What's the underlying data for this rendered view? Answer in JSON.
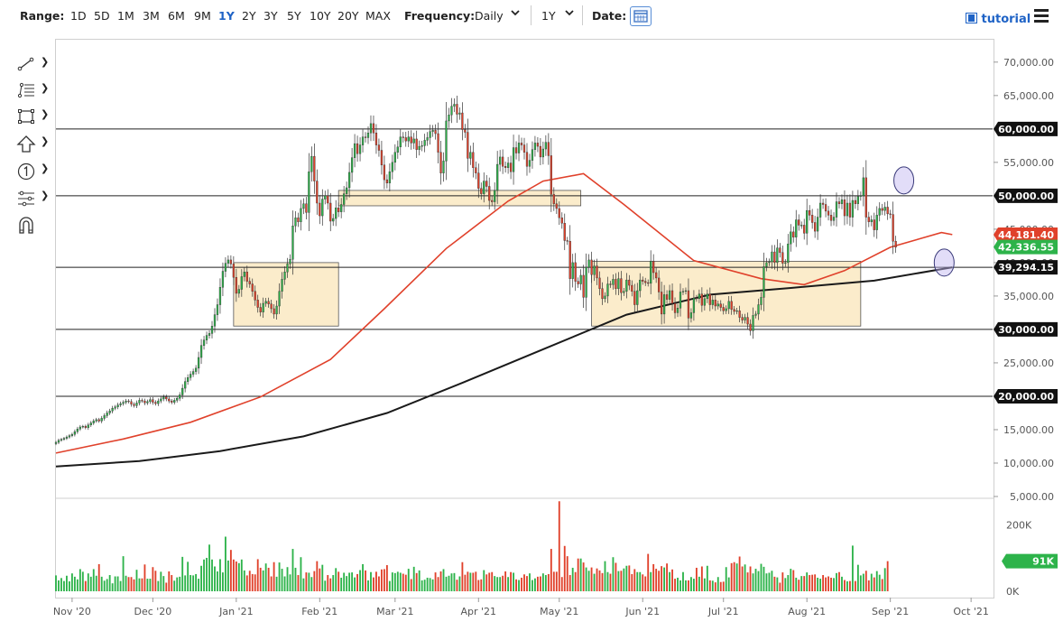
{
  "toolbar": {
    "range_label": "Range:",
    "ranges": [
      "1D",
      "5D",
      "1M",
      "3M",
      "6M",
      "9M",
      "1Y",
      "2Y",
      "3Y",
      "5Y",
      "10Y",
      "20Y",
      "MAX"
    ],
    "active_range": "1Y",
    "frequency_label": "Frequency:",
    "frequency_value": "Daily",
    "period_value": "1Y",
    "date_label": "Date:",
    "tutorial_label": "tutorial"
  },
  "icons": [
    "trend-line-icon",
    "fib-icon",
    "rectangle-icon",
    "arrow-up-icon",
    "counter-icon",
    "levels-icon",
    "magnet-icon",
    "calendar-icon",
    "film-icon",
    "menu-icon"
  ],
  "chart_data": {
    "type": "candlestick",
    "title": "",
    "xlabel": "",
    "ylabel": "",
    "ylim": [
      5000,
      72000
    ],
    "volume_ylim": [
      0,
      270000
    ],
    "x_tick_labels": [
      "Nov '20",
      "Dec '20",
      "Jan '21",
      "Feb '21",
      "Mar '21",
      "Apr '21",
      "May '21",
      "Jun '21",
      "Jul '21",
      "Aug '21",
      "Sep '21",
      "Oct '21"
    ],
    "y_tick_labels": [
      "5,000.00",
      "10,000.00",
      "15,000.00",
      "20,000.00",
      "25,000.00",
      "30,000.00",
      "35,000.00",
      "40,000.00",
      "45,000.00",
      "50,000.00",
      "55,000.00",
      "60,000.00",
      "65,000.00",
      "70,000.00"
    ],
    "volume_tick_labels": [
      "0K",
      "200K"
    ],
    "horizontal_levels": [
      {
        "value": 60000,
        "label": "60,000.00"
      },
      {
        "value": 50000,
        "label": "50,000.00"
      },
      {
        "value": 39294.15,
        "label": "39,294.15"
      },
      {
        "value": 30000,
        "label": "30,000.00"
      },
      {
        "value": 20000,
        "label": "20,000.00"
      }
    ],
    "price_flags": [
      {
        "value": 44181.4,
        "label": "44,181.40",
        "color": "#e0412b"
      },
      {
        "value": 42336.55,
        "label": "42,336.55",
        "color": "#2db34a"
      },
      {
        "value": 91000,
        "label": "91K",
        "color": "#2db34a",
        "pane": "volume"
      }
    ],
    "zones": [
      {
        "x0": "2020-12-31",
        "x1": "2021-02-08",
        "y0": 30500,
        "y1": 40000
      },
      {
        "x0": "2021-02-08",
        "x1": "2021-05-09",
        "y0": 48500,
        "y1": 50800
      },
      {
        "x0": "2021-05-13",
        "x1": "2021-08-21",
        "y0": 30500,
        "y1": 40200
      }
    ],
    "circles": [
      {
        "x": "2021-09-06",
        "y": 52300
      },
      {
        "x": "2021-09-21",
        "y": 40000
      }
    ],
    "series": [
      {
        "name": "",
        "kind": "candles",
        "x_start": "2020-10-26",
        "close": [
          13100,
          13400,
          13550,
          13700,
          13900,
          14100,
          14300,
          14700,
          15100,
          15400,
          15500,
          15300,
          15700,
          16000,
          16300,
          16500,
          16300,
          16700,
          17100,
          17500,
          17800,
          18200,
          18400,
          18700,
          18900,
          19100,
          19300,
          19200,
          18800,
          18600,
          19000,
          19400,
          19300,
          19000,
          19200,
          19500,
          19100,
          18900,
          19300,
          19600,
          19900,
          19600,
          19300,
          19100,
          19400,
          19700,
          20200,
          21200,
          22200,
          22800,
          23300,
          23700,
          24200,
          25800,
          27600,
          28400,
          29100,
          29400,
          30500,
          32200,
          33700,
          36300,
          38700,
          39900,
          40400,
          39800,
          37800,
          35400,
          36000,
          37900,
          38600,
          37200,
          36800,
          35700,
          34400,
          33300,
          32600,
          33900,
          34200,
          33800,
          33100,
          32300,
          33500,
          35700,
          37500,
          38600,
          39800,
          40500,
          45500,
          46700,
          46100,
          48100,
          48800,
          47500,
          53600,
          55900,
          52200,
          48900,
          47000,
          49500,
          50000,
          48900,
          46200,
          46600,
          48200,
          47600,
          48700,
          50300,
          51200,
          53500,
          55700,
          57800,
          56300,
          57600,
          58800,
          58700,
          59400,
          60800,
          59400,
          57600,
          56800,
          54600,
          52400,
          51900,
          53600,
          55000,
          56500,
          57300,
          58800,
          58700,
          58200,
          58800,
          57900,
          58500,
          56900,
          57400,
          57500,
          58300,
          58700,
          59600,
          59800,
          59300,
          56500,
          53400,
          55200,
          61200,
          62100,
          63400,
          63700,
          62200,
          62400,
          59900,
          59500,
          55600,
          56500,
          54200,
          53400,
          51100,
          50300,
          52200,
          51400,
          49300,
          49100,
          50800,
          54700,
          55800,
          54400,
          54200,
          54900,
          53600,
          57200,
          56400,
          57900,
          57600,
          56500,
          54400,
          55300,
          56900,
          57900,
          57400,
          55800,
          57000,
          58000,
          56000,
          50200,
          48800,
          48100,
          46700,
          45900,
          43300,
          43200,
          37600,
          40000,
          37200,
          36800,
          38100,
          34800,
          39300,
          40400,
          38200,
          39500,
          37700,
          36100,
          34600,
          35000,
          36800,
          36700,
          37500,
          36100,
          37600,
          35500,
          35700,
          37400,
          36600,
          35700,
          33700,
          35800,
          37400,
          37200,
          37000,
          36900,
          40200,
          38500,
          37700,
          35600,
          32300,
          35200,
          34500,
          35800,
          33900,
          32500,
          33200,
          35600,
          35700,
          35800,
          31700,
          32500,
          34700,
          34600,
          35300,
          33600,
          34600,
          35300,
          33700,
          34400,
          33500,
          33800,
          33300,
          32800,
          33100,
          34200,
          33000,
          32700,
          32800,
          31800,
          31400,
          31800,
          30800,
          29800,
          32100,
          32300,
          33700,
          34800,
          39400,
          40000,
          40100,
          41600,
          40000,
          42200,
          41500,
          39900,
          40000,
          42800,
          44600,
          43800,
          46400,
          45600,
          45600,
          44400,
          47800,
          47100,
          46000,
          44700,
          46800,
          48900,
          48700,
          47700,
          47100,
          46300,
          46800,
          49100,
          48800,
          49400,
          47000,
          48900,
          46800,
          49300,
          48800,
          49900,
          50000,
          52700,
          46800,
          46100,
          46400,
          44900,
          47100,
          48100,
          47800,
          48300,
          47300,
          47200,
          43200,
          42300
        ]
      },
      {
        "name": "",
        "kind": "line",
        "color": "#e0412b",
        "x": [
          "2020-10-26",
          "2020-11-20",
          "2020-12-15",
          "2021-01-10",
          "2021-02-05",
          "2021-02-25",
          "2021-03-20",
          "2021-04-12",
          "2021-04-25",
          "2021-05-10",
          "2021-05-25",
          "2021-06-20",
          "2021-07-15",
          "2021-07-31",
          "2021-08-15",
          "2021-09-01",
          "2021-09-20",
          "2021-09-24"
        ],
        "y": [
          11500,
          13600,
          16100,
          19900,
          25500,
          33100,
          42100,
          49200,
          52200,
          53300,
          48700,
          40300,
          37600,
          36700,
          38800,
          42300,
          44500,
          44181.4
        ]
      },
      {
        "name": "",
        "kind": "line",
        "color": "#1a1a1a",
        "x": [
          "2020-10-26",
          "2020-11-26",
          "2020-12-26",
          "2021-01-26",
          "2021-02-26",
          "2021-03-26",
          "2021-04-26",
          "2021-05-26",
          "2021-06-26",
          "2021-07-26",
          "2021-08-26",
          "2021-09-24"
        ],
        "y": [
          9500,
          10300,
          11800,
          14000,
          17500,
          22000,
          27200,
          32200,
          35200,
          36200,
          37300,
          39294.15
        ]
      }
    ],
    "volume": {
      "name": "",
      "values": [
        48000,
        33000,
        40000,
        31000,
        47000,
        30000,
        54000,
        44000,
        36000,
        67000,
        59000,
        31000,
        54000,
        44000,
        67000,
        47000,
        82000,
        44000,
        32000,
        37000,
        49000,
        24000,
        45000,
        45000,
        31000,
        106000,
        47000,
        43000,
        43000,
        36000,
        65000,
        39000,
        39000,
        81000,
        38000,
        38000,
        73000,
        62000,
        31000,
        59000,
        46000,
        26000,
        60000,
        49000,
        32000,
        42000,
        44000,
        104000,
        48000,
        89000,
        49000,
        48000,
        52000,
        38000,
        77000,
        96000,
        101000,
        141000,
        96000,
        75000,
        60000,
        97000,
        57000,
        165000,
        93000,
        125000,
        96000,
        90000,
        85000,
        96000,
        63000,
        48000,
        62000,
        52000,
        51000,
        97000,
        71000,
        63000,
        84000,
        71000,
        45000,
        88000,
        44000,
        87000,
        68000,
        45000,
        73000,
        51000,
        128000,
        71000,
        49000,
        103000,
        39000,
        57000,
        56000,
        43000,
        61000,
        91000,
        69000,
        80000,
        32000,
        49000,
        39000,
        49000,
        70000,
        59000,
        41000,
        56000,
        46000,
        56000,
        57000,
        42000,
        52000,
        64000,
        82000,
        63000,
        33000,
        58000,
        42000,
        59000,
        45000,
        66000,
        67000,
        79000,
        31000,
        57000,
        55000,
        59000,
        56000,
        53000,
        50000,
        68000,
        37000,
        74000,
        55000,
        63000,
        33000,
        35000,
        41000,
        40000,
        36000,
        57000,
        43000,
        60000,
        67000,
        44000,
        47000,
        54000,
        55000,
        35000,
        45000,
        88000,
        50000,
        59000,
        56000,
        56000,
        59000,
        34000,
        36000,
        64000,
        51000,
        56000,
        58000,
        46000,
        43000,
        43000,
        47000,
        60000,
        43000,
        58000,
        56000,
        36000,
        34000,
        41000,
        51000,
        46000,
        54000,
        34000,
        39000,
        44000,
        45000,
        54000,
        49000,
        52000,
        128000,
        59000,
        59000,
        272000,
        43000,
        137000,
        106000,
        49000,
        71000,
        58000,
        99000,
        99000,
        87000,
        72000,
        62000,
        72000,
        53000,
        69000,
        63000,
        55000,
        91000,
        58000,
        53000,
        103000,
        86000,
        61000,
        62000,
        69000,
        77000,
        78000,
        52000,
        67000,
        58000,
        58000,
        51000,
        45000,
        113000,
        58000,
        82000,
        68000,
        62000,
        76000,
        72000,
        84000,
        58000,
        66000,
        38000,
        41000,
        33000,
        58000,
        33000,
        33000,
        43000,
        38000,
        71000,
        44000,
        75000,
        39000,
        77000,
        33000,
        32000,
        27000,
        43000,
        28000,
        29000,
        73000,
        42000,
        85000,
        88000,
        84000,
        105000,
        75000,
        81000,
        57000,
        75000,
        54000,
        68000,
        61000,
        83000,
        74000,
        54000,
        56000,
        62000,
        44000,
        42000,
        26000,
        57000,
        40000,
        49000,
        68000,
        64000,
        41000,
        35000,
        46000,
        46000,
        57000,
        49000,
        50000,
        51000,
        41000,
        38000,
        49000,
        42000,
        45000,
        41000,
        40000,
        55000,
        58000,
        44000,
        34000,
        30000,
        31000,
        138000,
        31000,
        80000,
        48000,
        53000,
        62000,
        33000,
        53000,
        42000,
        61000,
        50000,
        37000,
        70000,
        91000
      ]
    }
  }
}
